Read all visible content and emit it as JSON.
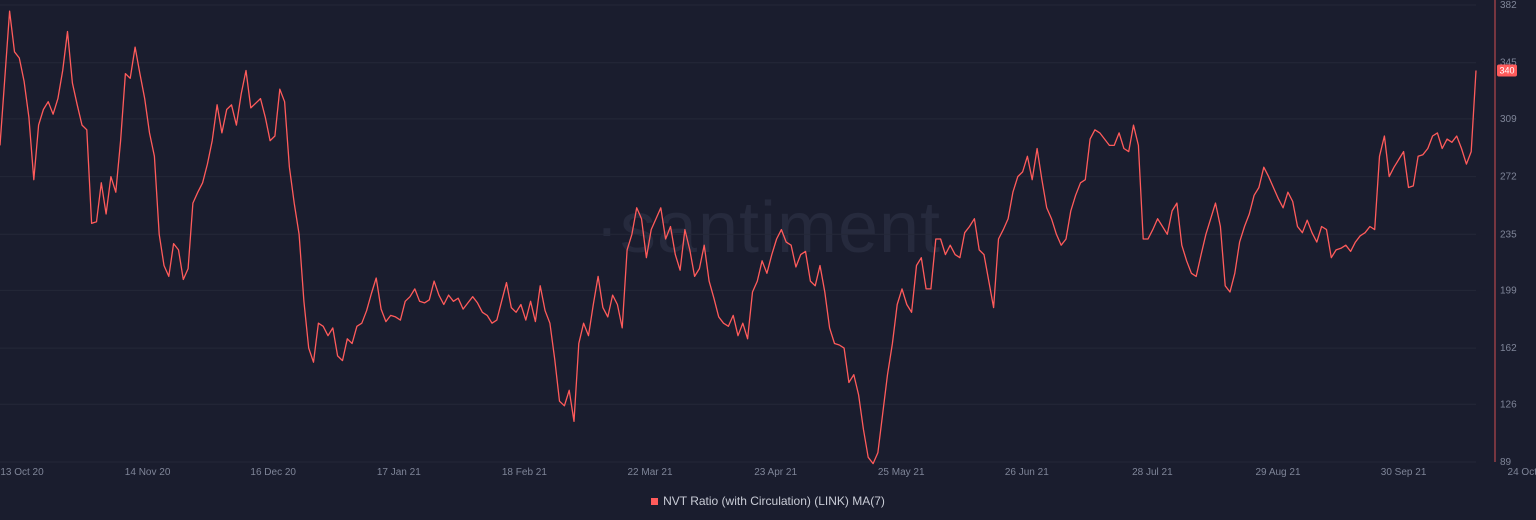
{
  "chart_data": {
    "type": "line",
    "watermark": "·santiment",
    "x_ticks": [
      "13 Oct 20",
      "14 Nov 20",
      "16 Dec 20",
      "17 Jan 21",
      "18 Feb 21",
      "22 Mar 21",
      "23 Apr 21",
      "25 May 21",
      "26 Jun 21",
      "28 Jul 21",
      "29 Aug 21",
      "30 Sep 21",
      "24 Oct 21"
    ],
    "y_ticks": [
      89,
      126,
      162,
      199,
      235,
      272,
      309,
      345,
      382
    ],
    "ylim": [
      89,
      382
    ],
    "grid": true,
    "legend_position": "bottom-center",
    "last_value_badge": "340",
    "series": [
      {
        "name": "NVT Ratio (with Circulation) (LINK) MA(7)",
        "color": "#ff5b5b",
        "values": [
          292,
          335,
          378,
          352,
          348,
          333,
          310,
          270,
          305,
          315,
          320,
          312,
          322,
          340,
          365,
          332,
          318,
          305,
          302,
          242,
          243,
          268,
          248,
          272,
          262,
          295,
          338,
          335,
          355,
          338,
          322,
          300,
          285,
          235,
          215,
          208,
          229,
          225,
          206,
          213,
          255,
          262,
          268,
          280,
          295,
          318,
          300,
          315,
          318,
          305,
          325,
          340,
          316,
          319,
          322,
          310,
          295,
          298,
          328,
          320,
          278,
          255,
          235,
          192,
          162,
          153,
          178,
          176,
          170,
          175,
          157,
          154,
          168,
          165,
          176,
          178,
          186,
          197,
          207,
          187,
          179,
          183,
          182,
          180,
          192,
          195,
          200,
          192,
          191,
          193,
          205,
          196,
          190,
          196,
          192,
          194,
          187,
          191,
          195,
          191,
          185,
          183,
          178,
          180,
          192,
          204,
          188,
          185,
          190,
          180,
          192,
          179,
          202,
          186,
          178,
          155,
          128,
          125,
          135,
          115,
          165,
          178,
          170,
          190,
          208,
          188,
          182,
          196,
          190,
          175,
          225,
          235,
          252,
          245,
          220,
          238,
          245,
          252,
          232,
          240,
          222,
          212,
          238,
          225,
          208,
          213,
          228,
          205,
          194,
          182,
          178,
          176,
          183,
          170,
          178,
          168,
          198,
          205,
          218,
          210,
          222,
          232,
          238,
          230,
          228,
          214,
          222,
          224,
          205,
          202,
          215,
          198,
          175,
          165,
          164,
          162,
          140,
          145,
          132,
          110,
          92,
          88,
          95,
          120,
          145,
          165,
          190,
          200,
          190,
          185,
          215,
          220,
          200,
          200,
          232,
          232,
          222,
          228,
          222,
          220,
          236,
          240,
          245,
          225,
          222,
          205,
          188,
          232,
          238,
          245,
          262,
          272,
          275,
          285,
          270,
          290,
          270,
          252,
          245,
          235,
          228,
          232,
          250,
          260,
          268,
          270,
          296,
          302,
          300,
          296,
          292,
          292,
          300,
          290,
          288,
          305,
          292,
          232,
          232,
          238,
          245,
          240,
          235,
          250,
          255,
          228,
          218,
          210,
          208,
          222,
          235,
          245,
          255,
          240,
          202,
          198,
          210,
          230,
          240,
          248,
          260,
          265,
          278,
          272,
          265,
          258,
          252,
          262,
          256,
          240,
          236,
          244,
          236,
          230,
          240,
          238,
          220,
          225,
          226,
          228,
          224,
          230,
          234,
          236,
          240,
          238,
          285,
          298,
          272,
          278,
          283,
          288,
          265,
          266,
          285,
          286,
          290,
          298,
          300,
          290,
          296,
          294,
          298,
          290,
          280,
          288,
          340
        ]
      }
    ]
  }
}
